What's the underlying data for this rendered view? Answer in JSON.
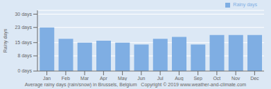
{
  "chart_data": {
    "type": "bar",
    "categories": [
      "Jan",
      "Feb",
      "Mar",
      "Apr",
      "May",
      "Jun",
      "Jul",
      "Aug",
      "Sep",
      "Oct",
      "Nov",
      "Dec"
    ],
    "series": [
      {
        "name": "Rainy days",
        "color": "#7faee3",
        "values": [
          23,
          17,
          15,
          16,
          15,
          14,
          17,
          18,
          14,
          19,
          19,
          19
        ]
      }
    ],
    "ylabel": "Rainy days",
    "xlabel": "Average rainy days (rain/snow) in Brussels, Belgium   Copyright © 2019 www.weather-and-climate.com",
    "ylim": [
      0,
      32
    ],
    "yticks": [
      {
        "value": 0,
        "label": "0 days"
      },
      {
        "value": 8,
        "label": "8 days"
      },
      {
        "value": 15,
        "label": "15 days"
      },
      {
        "value": 23,
        "label": "23 days"
      },
      {
        "value": 30,
        "label": "30 days"
      }
    ],
    "grid": true,
    "legend": "upper right"
  }
}
